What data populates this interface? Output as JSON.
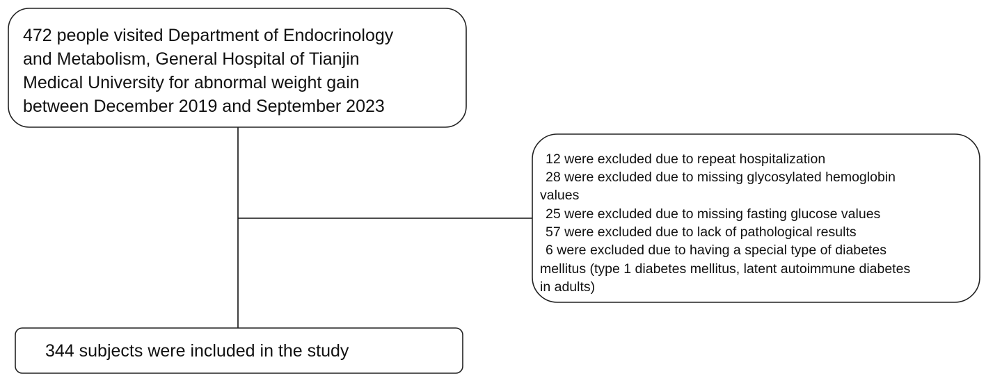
{
  "nodes": [
    {
      "lines": [
        "472 people visited Department of Endocrinology",
        "and Metabolism, General Hospital of Tianjin",
        "Medical University for abnormal weight gain",
        "between December 2019 and September 2023"
      ]
    },
    {
      "lines": [
        "12 were excluded due to repeat hospitalization",
        "28 were excluded due to missing glycosylated hemoglobin",
        "values",
        "25 were excluded due to missing fasting glucose values",
        "57 were excluded due to lack of pathological results",
        "6 were excluded due to having a special type of diabetes",
        "mellitus (type 1 diabetes mellitus, latent autoimmune diabetes",
        "in adults)"
      ]
    },
    {
      "lines": [
        "344 subjects were included in the study"
      ]
    }
  ]
}
